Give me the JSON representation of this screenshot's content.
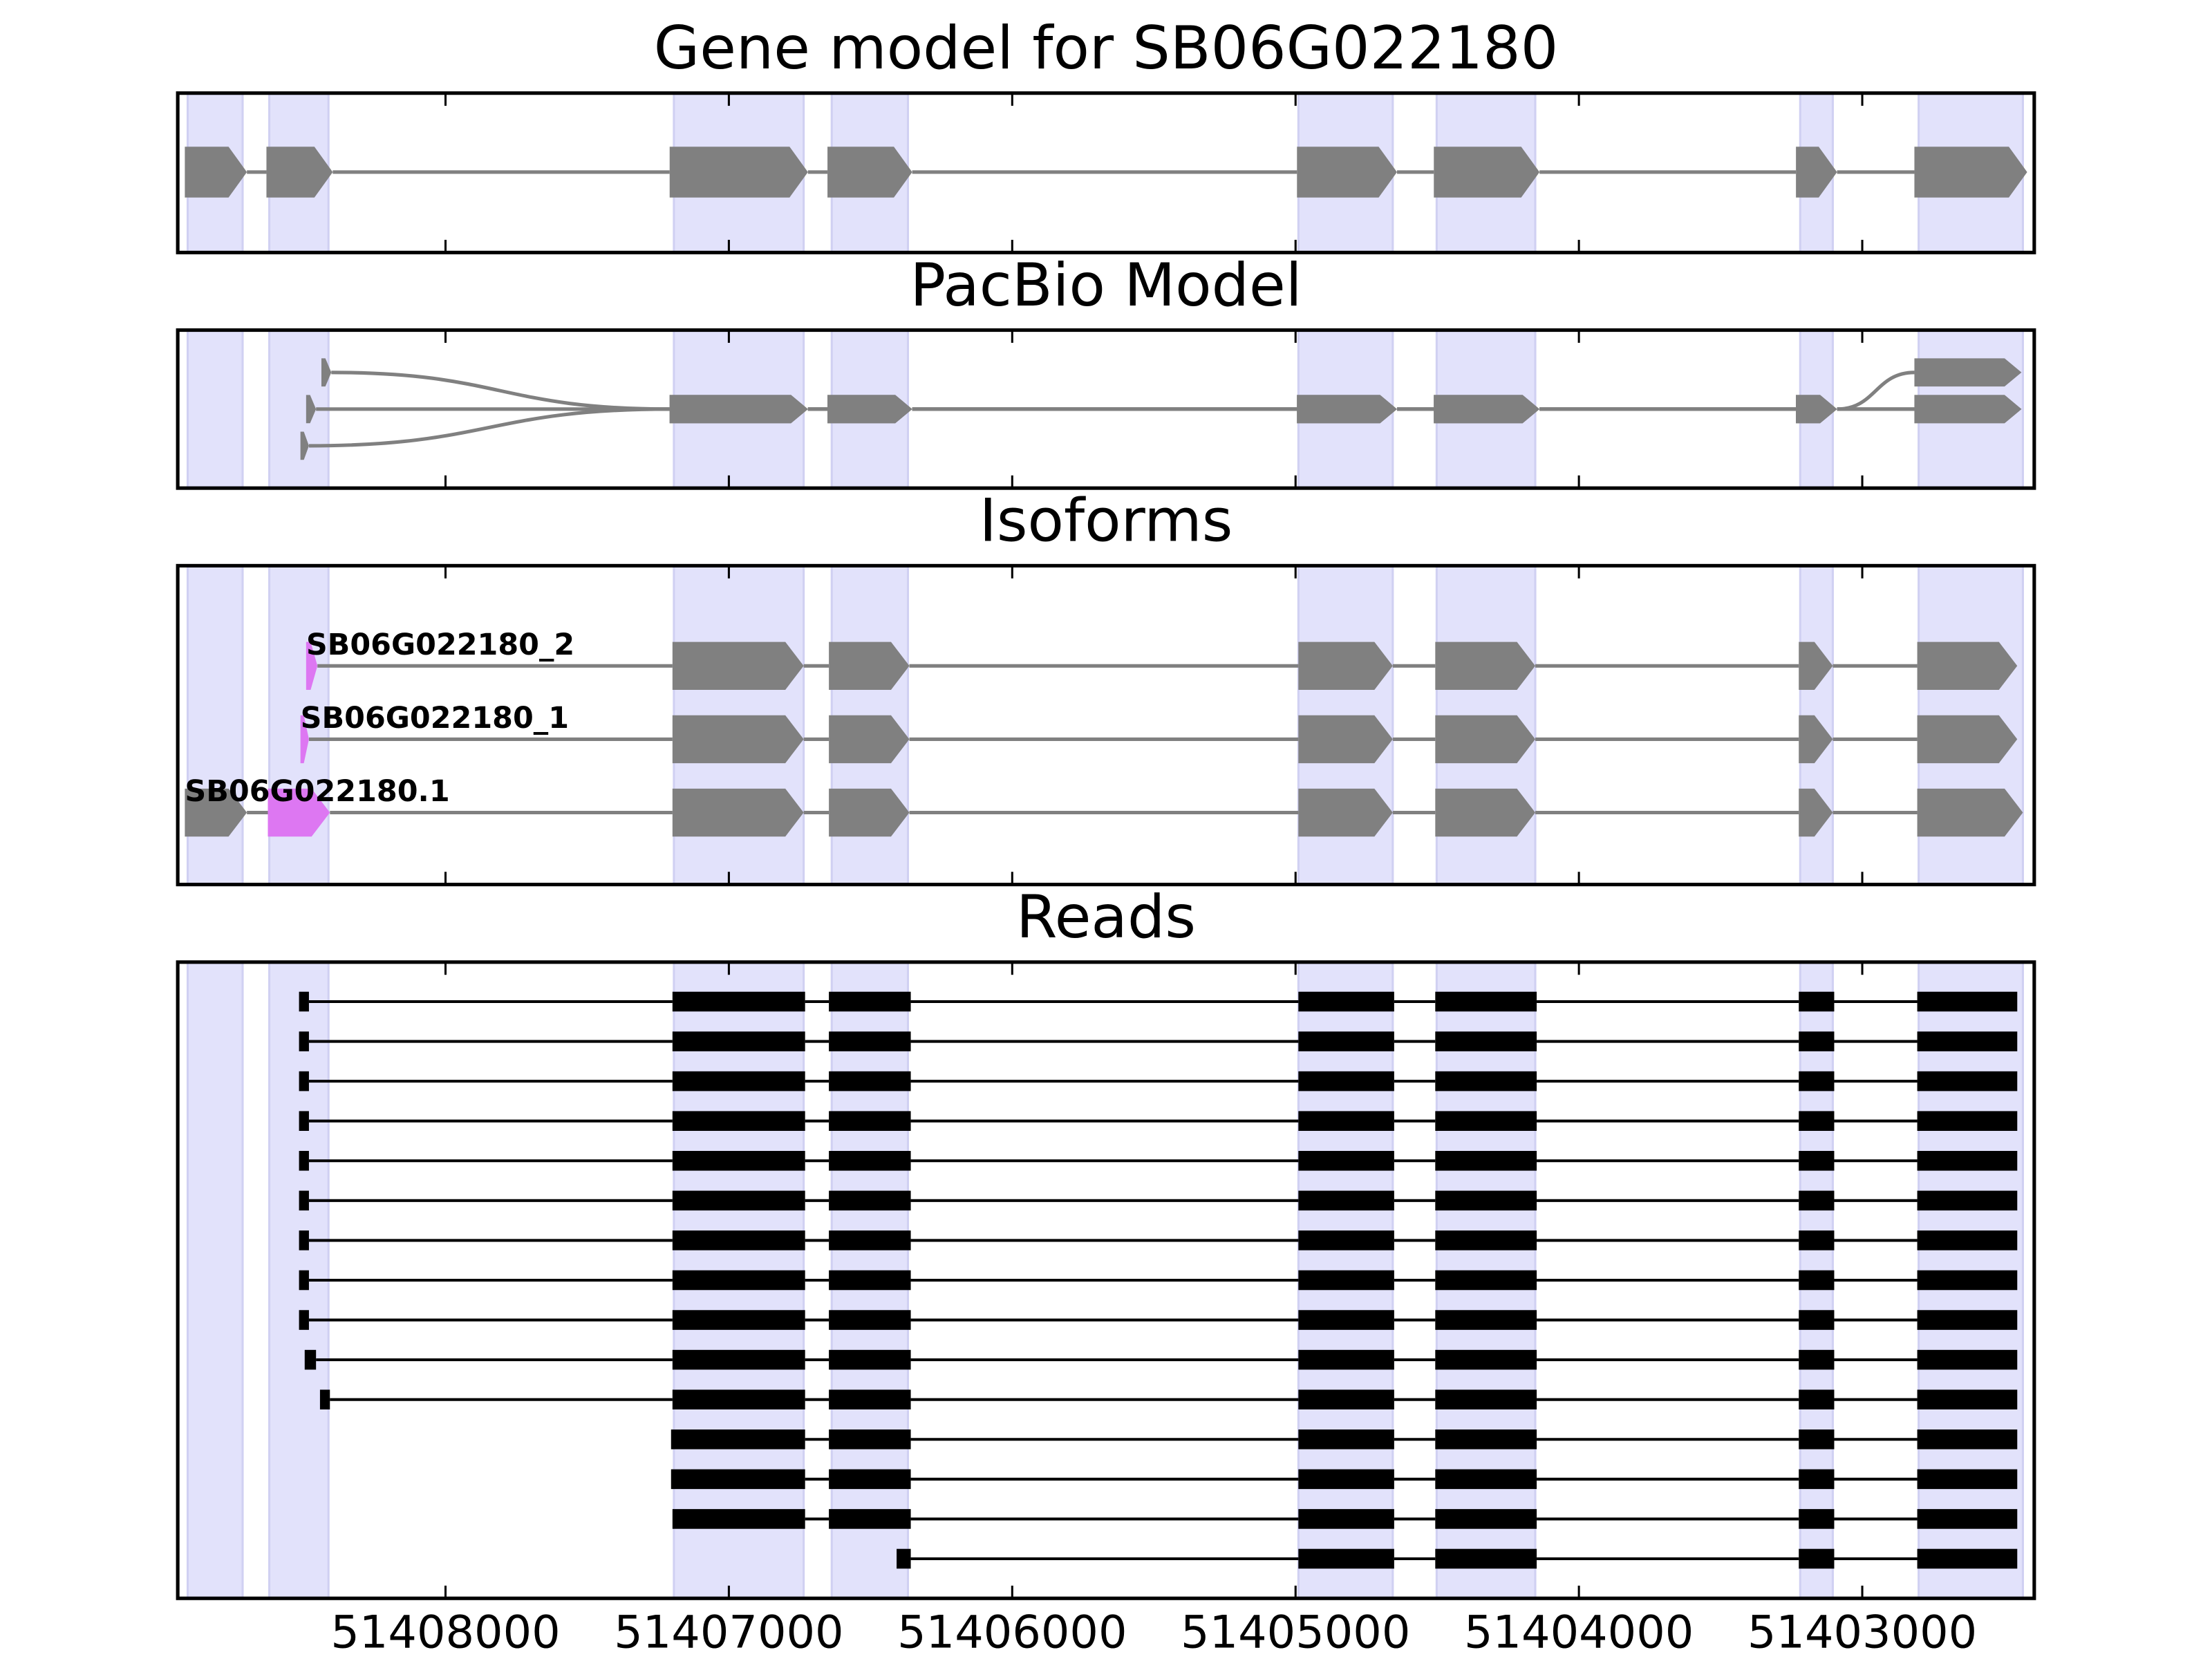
{
  "chart_data": [
    {
      "type": "gene_model",
      "title": "Gene model for SB06G022180",
      "color": "#808080",
      "shade_color": "#e2e2fb",
      "xlim": [
        51408945,
        51402393
      ],
      "xticks": [
        51408000,
        51407000,
        51406000,
        51405000,
        51404000,
        51403000
      ],
      "xtick_labels": false,
      "shaded": [
        [
          51408910,
          51408716
        ],
        [
          51408622,
          51408413
        ],
        [
          51407194,
          51406736
        ],
        [
          51406637,
          51406368
        ],
        [
          51404990,
          51404657
        ],
        [
          51404502,
          51404154
        ],
        [
          51403219,
          51403104
        ],
        [
          51402801,
          51402433
        ]
      ],
      "transcripts": [
        {
          "exons": [
            [
              51408920,
              51408701
            ],
            [
              51408632,
              51408398
            ],
            [
              51407209,
              51406721
            ],
            [
              51406652,
              51406353
            ],
            [
              51404995,
              51404642
            ],
            [
              51404512,
              51404139
            ],
            [
              51403234,
              51403089
            ],
            [
              51402816,
              51402418
            ]
          ]
        }
      ]
    },
    {
      "type": "splice_graph",
      "title": "PacBio Model",
      "color": "#808080",
      "shade_color": "#e2e2fb",
      "xlim": [
        51408945,
        51402393
      ],
      "xticks": [
        51408000,
        51407000,
        51406000,
        51405000,
        51404000,
        51403000
      ],
      "xtick_labels": false,
      "shaded": [
        [
          51408910,
          51408716
        ],
        [
          51408622,
          51408413
        ],
        [
          51407194,
          51406736
        ],
        [
          51406637,
          51406368
        ],
        [
          51404990,
          51404657
        ],
        [
          51404502,
          51404154
        ],
        [
          51403219,
          51403104
        ],
        [
          51402801,
          51402433
        ]
      ],
      "transcripts": [
        {
          "exons": [
            [
              51408438,
              51408403
            ],
            [
              51407209,
              51406721
            ],
            [
              51406652,
              51406353
            ],
            [
              51404995,
              51404642
            ],
            [
              51404512,
              51404139
            ],
            [
              51403234,
              51403089
            ],
            [
              51402816,
              51402438
            ]
          ]
        },
        {
          "exons": [
            [
              51408492,
              51408457
            ],
            [
              51407209,
              51406721
            ],
            [
              51406652,
              51406353
            ],
            [
              51404995,
              51404642
            ],
            [
              51404512,
              51404139
            ],
            [
              51403234,
              51403089
            ],
            [
              51402816,
              51402438
            ]
          ]
        },
        {
          "exons": [
            [
              51408512,
              51408482
            ],
            [
              51407209,
              51406721
            ],
            [
              51406652,
              51406353
            ],
            [
              51404995,
              51404642
            ],
            [
              51404512,
              51404139
            ],
            [
              51403234,
              51403089
            ],
            [
              51402816,
              51402438
            ]
          ]
        }
      ]
    },
    {
      "type": "isoforms",
      "title": "Isoforms",
      "color": "#808080",
      "shade_color": "#e2e2fb",
      "xlim": [
        51408945,
        51402393
      ],
      "xticks": [
        51408000,
        51407000,
        51406000,
        51405000,
        51404000,
        51403000
      ],
      "xtick_labels": false,
      "shaded": [
        [
          51408910,
          51408716
        ],
        [
          51408622,
          51408413
        ],
        [
          51407194,
          51406736
        ],
        [
          51406637,
          51406368
        ],
        [
          51404990,
          51404657
        ],
        [
          51404502,
          51404154
        ],
        [
          51403219,
          51403104
        ],
        [
          51402801,
          51402433
        ]
      ],
      "transcripts": [
        {
          "name": "SB06G022180_2",
          "exons": [
            [
              51408492,
              51408452
            ],
            [
              51407199,
              51406736
            ],
            [
              51406647,
              51406363
            ],
            [
              51404990,
              51404657
            ],
            [
              51404507,
              51404154
            ],
            [
              51403224,
              51403104
            ],
            [
              51402806,
              51402453
            ]
          ],
          "exon_colors": [
            "#dd77f2",
            "#808080",
            "#808080",
            "#808080",
            "#808080",
            "#808080",
            "#808080"
          ]
        },
        {
          "name": "SB06G022180_1",
          "exons": [
            [
              51408512,
              51408482
            ],
            [
              51407199,
              51406736
            ],
            [
              51406647,
              51406363
            ],
            [
              51404990,
              51404657
            ],
            [
              51404507,
              51404154
            ],
            [
              51403224,
              51403104
            ],
            [
              51402806,
              51402453
            ]
          ],
          "exon_colors": [
            "#dd77f2",
            "#808080",
            "#808080",
            "#808080",
            "#808080",
            "#808080",
            "#808080"
          ]
        },
        {
          "name": "SB06G022180.1",
          "exons": [
            [
              51408920,
              51408701
            ],
            [
              51408627,
              51408408
            ],
            [
              51407199,
              51406736
            ],
            [
              51406647,
              51406363
            ],
            [
              51404990,
              51404657
            ],
            [
              51404507,
              51404154
            ],
            [
              51403224,
              51403104
            ],
            [
              51402806,
              51402433
            ]
          ],
          "exon_colors": [
            "#808080",
            "#dd77f2",
            "#808080",
            "#808080",
            "#808080",
            "#808080",
            "#808080",
            "#808080"
          ]
        }
      ]
    },
    {
      "type": "reads",
      "title": "Reads",
      "color": "#000000",
      "shade_color": "#e2e2fb",
      "xlim": [
        51408945,
        51402393
      ],
      "xticks": [
        51408000,
        51407000,
        51406000,
        51405000,
        51404000,
        51403000
      ],
      "xtick_labels": true,
      "shaded": [
        [
          51408910,
          51408716
        ],
        [
          51408622,
          51408413
        ],
        [
          51407194,
          51406736
        ],
        [
          51406637,
          51406368
        ],
        [
          51404990,
          51404657
        ],
        [
          51404502,
          51404154
        ],
        [
          51403219,
          51403104
        ],
        [
          51402801,
          51402433
        ]
      ],
      "transcripts": [
        {
          "exons": [
            [
              51408517,
              51408482
            ],
            [
              51407199,
              51406731
            ],
            [
              51406647,
              51406358
            ],
            [
              51404990,
              51404652
            ],
            [
              51404507,
              51404149
            ],
            [
              51403224,
              51403099
            ],
            [
              51402806,
              51402453
            ]
          ]
        },
        {
          "exons": [
            [
              51408517,
              51408482
            ],
            [
              51407199,
              51406731
            ],
            [
              51406647,
              51406358
            ],
            [
              51404990,
              51404652
            ],
            [
              51404507,
              51404149
            ],
            [
              51403224,
              51403099
            ],
            [
              51402806,
              51402453
            ]
          ]
        },
        {
          "exons": [
            [
              51408517,
              51408482
            ],
            [
              51407199,
              51406731
            ],
            [
              51406647,
              51406358
            ],
            [
              51404990,
              51404652
            ],
            [
              51404507,
              51404149
            ],
            [
              51403224,
              51403099
            ],
            [
              51402806,
              51402453
            ]
          ]
        },
        {
          "exons": [
            [
              51408517,
              51408482
            ],
            [
              51407199,
              51406731
            ],
            [
              51406647,
              51406358
            ],
            [
              51404990,
              51404652
            ],
            [
              51404507,
              51404149
            ],
            [
              51403224,
              51403099
            ],
            [
              51402806,
              51402453
            ]
          ]
        },
        {
          "exons": [
            [
              51408517,
              51408482
            ],
            [
              51407199,
              51406731
            ],
            [
              51406647,
              51406358
            ],
            [
              51404990,
              51404652
            ],
            [
              51404507,
              51404149
            ],
            [
              51403224,
              51403099
            ],
            [
              51402806,
              51402453
            ]
          ]
        },
        {
          "exons": [
            [
              51408517,
              51408482
            ],
            [
              51407199,
              51406731
            ],
            [
              51406647,
              51406358
            ],
            [
              51404990,
              51404652
            ],
            [
              51404507,
              51404149
            ],
            [
              51403224,
              51403099
            ],
            [
              51402806,
              51402453
            ]
          ]
        },
        {
          "exons": [
            [
              51408517,
              51408482
            ],
            [
              51407199,
              51406731
            ],
            [
              51406647,
              51406358
            ],
            [
              51404990,
              51404652
            ],
            [
              51404507,
              51404149
            ],
            [
              51403224,
              51403099
            ],
            [
              51402806,
              51402453
            ]
          ]
        },
        {
          "exons": [
            [
              51408517,
              51408482
            ],
            [
              51407199,
              51406731
            ],
            [
              51406647,
              51406358
            ],
            [
              51404990,
              51404652
            ],
            [
              51404507,
              51404149
            ],
            [
              51403224,
              51403099
            ],
            [
              51402806,
              51402453
            ]
          ]
        },
        {
          "exons": [
            [
              51408517,
              51408482
            ],
            [
              51407199,
              51406731
            ],
            [
              51406647,
              51406358
            ],
            [
              51404990,
              51404652
            ],
            [
              51404507,
              51404149
            ],
            [
              51403224,
              51403099
            ],
            [
              51402806,
              51402453
            ]
          ]
        },
        {
          "exons": [
            [
              51408497,
              51408457
            ],
            [
              51407199,
              51406731
            ],
            [
              51406647,
              51406358
            ],
            [
              51404990,
              51404652
            ],
            [
              51404507,
              51404149
            ],
            [
              51403224,
              51403099
            ],
            [
              51402806,
              51402453
            ]
          ]
        },
        {
          "exons": [
            [
              51408443,
              51408408
            ],
            [
              51407199,
              51406731
            ],
            [
              51406647,
              51406358
            ],
            [
              51404990,
              51404652
            ],
            [
              51404507,
              51404149
            ],
            [
              51403224,
              51403099
            ],
            [
              51402806,
              51402453
            ]
          ]
        },
        {
          "exons": [
            [
              51407204,
              51406731
            ],
            [
              51406647,
              51406358
            ],
            [
              51404990,
              51404652
            ],
            [
              51404507,
              51404149
            ],
            [
              51403224,
              51403099
            ],
            [
              51402806,
              51402453
            ]
          ]
        },
        {
          "exons": [
            [
              51407204,
              51406731
            ],
            [
              51406647,
              51406358
            ],
            [
              51404990,
              51404652
            ],
            [
              51404507,
              51404149
            ],
            [
              51403224,
              51403099
            ],
            [
              51402806,
              51402453
            ]
          ]
        },
        {
          "exons": [
            [
              51407199,
              51406731
            ],
            [
              51406647,
              51406358
            ],
            [
              51404990,
              51404652
            ],
            [
              51404507,
              51404149
            ],
            [
              51403224,
              51403099
            ],
            [
              51402806,
              51402453
            ]
          ]
        },
        {
          "exons": [
            [
              51406408,
              51406358
            ],
            [
              51404990,
              51404652
            ],
            [
              51404507,
              51404149
            ],
            [
              51403224,
              51403099
            ],
            [
              51402806,
              51402453
            ]
          ]
        }
      ]
    }
  ]
}
